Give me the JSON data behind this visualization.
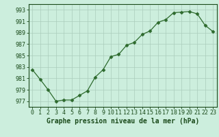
{
  "x": [
    0,
    1,
    2,
    3,
    4,
    5,
    6,
    7,
    8,
    9,
    10,
    11,
    12,
    13,
    14,
    15,
    16,
    17,
    18,
    19,
    20,
    21,
    22,
    23
  ],
  "y": [
    982.5,
    980.8,
    979.0,
    977.0,
    977.2,
    977.2,
    978.0,
    978.8,
    981.2,
    982.5,
    984.8,
    985.2,
    986.8,
    987.3,
    988.7,
    989.3,
    990.8,
    991.3,
    992.5,
    992.6,
    992.7,
    992.3,
    990.3,
    989.2
  ],
  "line_color": "#2d6a2d",
  "marker": "D",
  "marker_size": 2.5,
  "bg_color": "#cceedd",
  "grid_color": "#aaccbb",
  "xlabel": "Graphe pression niveau de la mer (hPa)",
  "xlabel_fontsize": 7,
  "ytick_labels": [
    "977",
    "979",
    "981",
    "983",
    "985",
    "987",
    "989",
    "991",
    "993"
  ],
  "ytick_values": [
    977,
    979,
    981,
    983,
    985,
    987,
    989,
    991,
    993
  ],
  "ylim": [
    976.0,
    994.0
  ],
  "xlim": [
    -0.5,
    23.5
  ],
  "tick_fontsize": 6,
  "text_color": "#1a4a1a"
}
